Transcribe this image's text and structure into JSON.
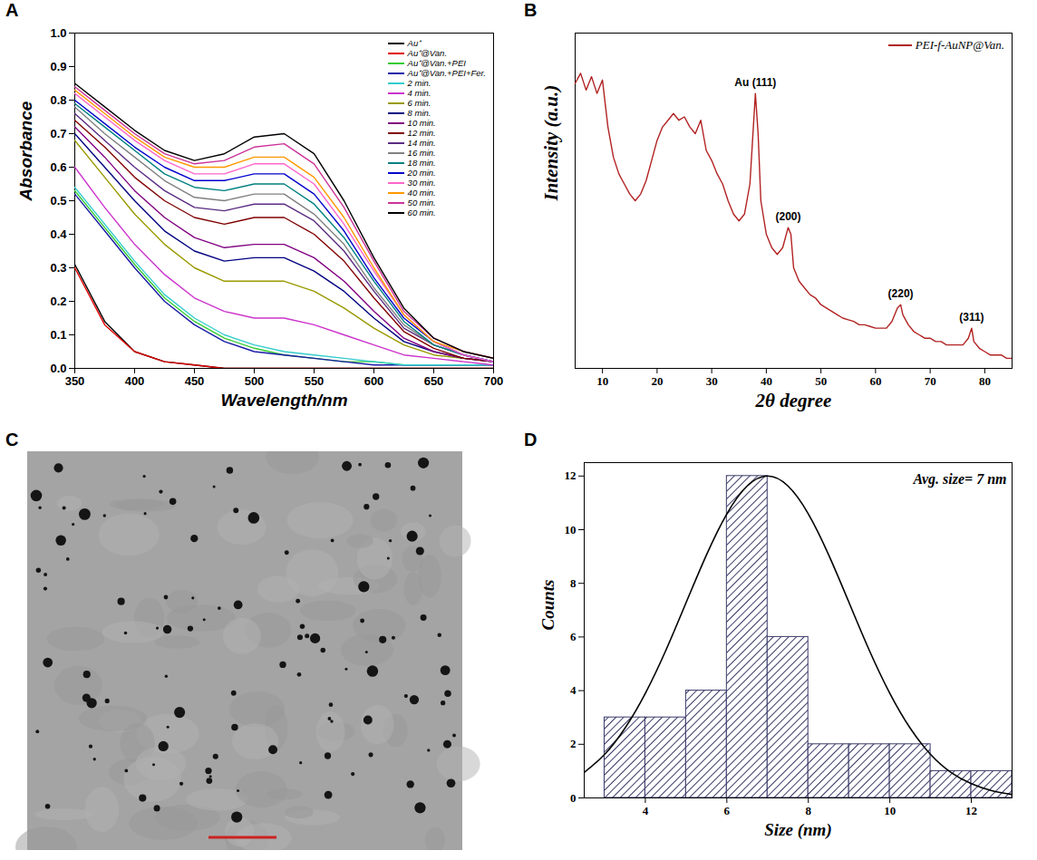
{
  "chart_data": [
    {
      "panel": "A",
      "type": "line",
      "x_label": "Wavelength/nm",
      "y_label": "Absorbance",
      "x": [
        350,
        375,
        400,
        425,
        450,
        475,
        500,
        525,
        550,
        575,
        600,
        625,
        650,
        675,
        700
      ],
      "xlim": [
        350,
        700
      ],
      "xticks": [
        350,
        400,
        450,
        500,
        550,
        600,
        650,
        700
      ],
      "ylim": [
        0,
        1.0
      ],
      "yticks": [
        {
          "value": 0,
          "label": "0.0"
        },
        {
          "value": 0.1,
          "label": "0.1"
        },
        {
          "value": 0.2,
          "label": "0.2"
        },
        {
          "value": 0.3,
          "label": "0.3"
        },
        {
          "value": 0.4,
          "label": "0.4"
        },
        {
          "value": 0.5,
          "label": "0.5"
        },
        {
          "value": 0.6,
          "label": "0.6"
        },
        {
          "value": 0.7,
          "label": "0.7"
        },
        {
          "value": 0.8,
          "label": "0.8"
        },
        {
          "value": 0.9,
          "label": "0.9"
        },
        {
          "value": 1.0,
          "label": "1.0"
        }
      ],
      "grid": false,
      "legend": "top-right",
      "series": [
        {
          "name": "Au⁺",
          "color": "#000000",
          "values": [
            0.31,
            0.14,
            0.05,
            0.02,
            0.01,
            0,
            0,
            0,
            0,
            0,
            0,
            0,
            0,
            0,
            0
          ]
        },
        {
          "name": "Au⁺@Van.",
          "color": "#e00000",
          "values": [
            0.3,
            0.13,
            0.05,
            0.02,
            0.01,
            0,
            0,
            0,
            0,
            0,
            0,
            0,
            0,
            0,
            0
          ]
        },
        {
          "name": "Au⁺@Van.+PEI",
          "color": "#33cc33",
          "values": [
            0.53,
            0.42,
            0.31,
            0.21,
            0.14,
            0.09,
            0.06,
            0.04,
            0.03,
            0.02,
            0.02,
            0.01,
            0.01,
            0.01,
            0.01
          ]
        },
        {
          "name": "Au⁺@Van.+PEI+Fer.",
          "color": "#1a1aa6",
          "values": [
            0.52,
            0.41,
            0.3,
            0.2,
            0.13,
            0.08,
            0.05,
            0.04,
            0.03,
            0.02,
            0.01,
            0.01,
            0.01,
            0.01,
            0.01
          ]
        },
        {
          "name": "2 min.",
          "color": "#33cccc",
          "values": [
            0.54,
            0.43,
            0.32,
            0.22,
            0.15,
            0.1,
            0.07,
            0.05,
            0.04,
            0.03,
            0.02,
            0.01,
            0.01,
            0.01,
            0.01
          ]
        },
        {
          "name": "4 min.",
          "color": "#cc33cc",
          "values": [
            0.6,
            0.48,
            0.37,
            0.28,
            0.21,
            0.17,
            0.15,
            0.15,
            0.13,
            0.1,
            0.07,
            0.04,
            0.03,
            0.02,
            0.01
          ]
        },
        {
          "name": "6 min.",
          "color": "#999900",
          "values": [
            0.68,
            0.57,
            0.46,
            0.37,
            0.3,
            0.26,
            0.26,
            0.26,
            0.23,
            0.18,
            0.12,
            0.07,
            0.04,
            0.03,
            0.02
          ]
        },
        {
          "name": "8 min.",
          "color": "#000080",
          "values": [
            0.7,
            0.6,
            0.5,
            0.41,
            0.35,
            0.32,
            0.33,
            0.33,
            0.29,
            0.23,
            0.15,
            0.08,
            0.05,
            0.03,
            0.02
          ]
        },
        {
          "name": "10 min.",
          "color": "#800080",
          "values": [
            0.72,
            0.63,
            0.53,
            0.45,
            0.39,
            0.36,
            0.37,
            0.37,
            0.33,
            0.26,
            0.17,
            0.09,
            0.05,
            0.03,
            0.02
          ]
        },
        {
          "name": "12 min.",
          "color": "#800000",
          "values": [
            0.74,
            0.66,
            0.57,
            0.5,
            0.45,
            0.43,
            0.45,
            0.45,
            0.4,
            0.32,
            0.21,
            0.11,
            0.06,
            0.03,
            0.02
          ]
        },
        {
          "name": "14 min.",
          "color": "#5b2c83",
          "values": [
            0.76,
            0.68,
            0.6,
            0.53,
            0.48,
            0.47,
            0.49,
            0.49,
            0.44,
            0.35,
            0.23,
            0.12,
            0.07,
            0.04,
            0.02
          ]
        },
        {
          "name": "16 min.",
          "color": "#808080",
          "values": [
            0.78,
            0.7,
            0.63,
            0.56,
            0.51,
            0.5,
            0.52,
            0.52,
            0.46,
            0.37,
            0.24,
            0.13,
            0.07,
            0.04,
            0.02
          ]
        },
        {
          "name": "18 min.",
          "color": "#008080",
          "values": [
            0.79,
            0.72,
            0.65,
            0.58,
            0.54,
            0.53,
            0.55,
            0.55,
            0.49,
            0.39,
            0.26,
            0.14,
            0.07,
            0.04,
            0.02
          ]
        },
        {
          "name": "20 min.",
          "color": "#0000cc",
          "values": [
            0.8,
            0.73,
            0.66,
            0.6,
            0.56,
            0.56,
            0.58,
            0.58,
            0.52,
            0.41,
            0.27,
            0.15,
            0.08,
            0.04,
            0.02
          ]
        },
        {
          "name": "30 min.",
          "color": "#ff66cc",
          "values": [
            0.82,
            0.75,
            0.68,
            0.62,
            0.58,
            0.58,
            0.61,
            0.61,
            0.55,
            0.43,
            0.29,
            0.16,
            0.08,
            0.04,
            0.02
          ]
        },
        {
          "name": "40 min.",
          "color": "#ff9900",
          "values": [
            0.83,
            0.76,
            0.69,
            0.63,
            0.6,
            0.6,
            0.63,
            0.63,
            0.57,
            0.45,
            0.3,
            0.16,
            0.08,
            0.05,
            0.03
          ]
        },
        {
          "name": "50 min.",
          "color": "#cc3399",
          "values": [
            0.84,
            0.77,
            0.7,
            0.64,
            0.61,
            0.62,
            0.66,
            0.67,
            0.61,
            0.48,
            0.32,
            0.17,
            0.09,
            0.05,
            0.03
          ]
        },
        {
          "name": "60 min.",
          "color": "#000000",
          "values": [
            0.85,
            0.78,
            0.71,
            0.65,
            0.62,
            0.64,
            0.69,
            0.7,
            0.64,
            0.5,
            0.33,
            0.18,
            0.09,
            0.05,
            0.03
          ]
        }
      ]
    },
    {
      "panel": "B",
      "type": "line",
      "x_label": "2θ degree",
      "y_label": "Intensity (a.u.)",
      "xlim": [
        5,
        85
      ],
      "xticks": [
        10,
        20,
        30,
        40,
        50,
        60,
        70,
        80
      ],
      "ylim": [
        0,
        100
      ],
      "tick_labels": "x",
      "grid": false,
      "legend": "top-right",
      "series": [
        {
          "name": "PEI-f-AuNP@Van.",
          "color": "#b22222",
          "x": [
            5,
            6,
            7,
            8,
            9,
            10,
            11,
            12,
            13,
            14,
            15,
            16,
            17,
            18,
            19,
            20,
            21,
            22,
            23,
            24,
            25,
            26,
            27,
            28,
            29,
            30,
            31,
            32,
            33,
            34,
            35,
            36,
            37,
            38,
            38.5,
            39,
            40,
            41,
            42,
            43,
            44,
            44.5,
            45,
            46,
            47,
            48,
            49,
            50,
            51,
            52,
            53,
            54,
            55,
            56,
            57,
            58,
            59,
            60,
            61,
            62,
            63,
            64,
            64.6,
            65,
            66,
            67,
            68,
            69,
            70,
            71,
            72,
            73,
            74,
            75,
            76,
            77,
            77.6,
            78,
            79,
            80,
            81,
            82,
            83,
            84,
            85
          ],
          "values": [
            85,
            88,
            83,
            87,
            82,
            86,
            72,
            63,
            58,
            55,
            52,
            50,
            52,
            56,
            62,
            68,
            72,
            74,
            76,
            74,
            75,
            72,
            70,
            74,
            65,
            62,
            58,
            55,
            50,
            46,
            44,
            46,
            55,
            82,
            70,
            50,
            40,
            36,
            34,
            36,
            42,
            40,
            30,
            26,
            24,
            22,
            21,
            19,
            18,
            17,
            16,
            15,
            14.5,
            14,
            13,
            13,
            12.5,
            12,
            12,
            12,
            14,
            18,
            19,
            16,
            13,
            11,
            10,
            9,
            9,
            8,
            8,
            7,
            7,
            7,
            7,
            9,
            12,
            8,
            6,
            5,
            4,
            4,
            4,
            3,
            3
          ]
        }
      ],
      "annotations": [
        {
          "text": "Au (111)",
          "x": 38,
          "y": 82
        },
        {
          "text": "(200)",
          "x": 44,
          "y": 42
        },
        {
          "text": "(220)",
          "x": 64.6,
          "y": 19
        },
        {
          "text": "(311)",
          "x": 77.6,
          "y": 12
        }
      ]
    },
    {
      "panel": "C",
      "type": "image"
    },
    {
      "panel": "D",
      "type": "histogram",
      "x_label": "Size (nm)",
      "y_label": "Counts",
      "bins": [
        3,
        4,
        5,
        6,
        7,
        8,
        9,
        10,
        11,
        12,
        13
      ],
      "counts": [
        3,
        3,
        4,
        12,
        6,
        2,
        2,
        2,
        1,
        1
      ],
      "color": "#3b3b6b",
      "xlim": [
        2.5,
        13
      ],
      "xticks": [
        4,
        6,
        8,
        10,
        12
      ],
      "ylim": [
        0,
        12.5
      ],
      "yticks": [
        0,
        2,
        4,
        6,
        8,
        10,
        12
      ],
      "grid": false,
      "annotation": "Avg. size= 7 nm",
      "fit": {
        "color": "#000000",
        "x": [
          2.5,
          3,
          3.5,
          4,
          4.5,
          5,
          5.5,
          6,
          6.5,
          7,
          7.5,
          8,
          8.5,
          9,
          9.5,
          10,
          10.5,
          11,
          11.5,
          12,
          12.5,
          13
        ],
        "values": [
          0.95,
          1.62,
          2.6,
          3.9,
          5.49,
          7.28,
          9.06,
          10.59,
          11.63,
          12,
          11.63,
          10.59,
          9.06,
          7.28,
          5.49,
          3.9,
          2.6,
          1.62,
          0.95,
          0.53,
          0.27,
          0.13
        ]
      }
    }
  ]
}
